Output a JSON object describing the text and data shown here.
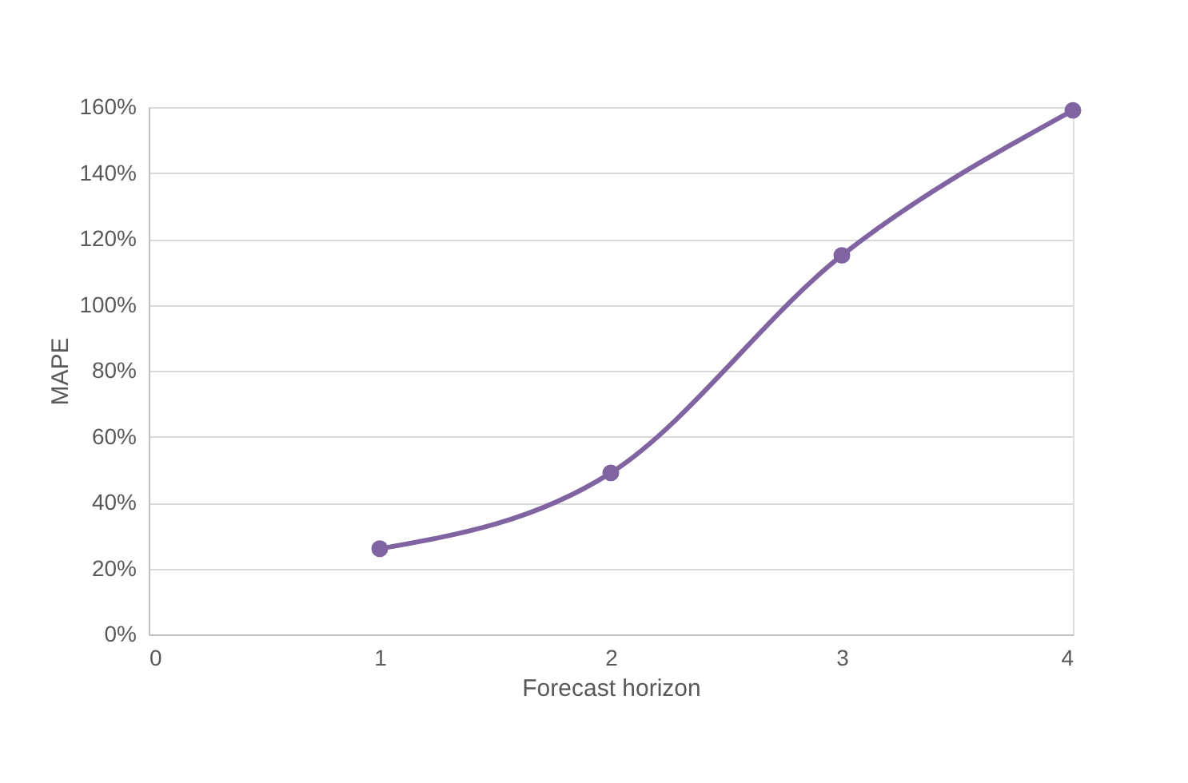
{
  "chart_data": {
    "type": "line",
    "xlabel": "Forecast horizon",
    "ylabel": "MAPE",
    "x": [
      1,
      2,
      3,
      4
    ],
    "series": [
      {
        "color": "#8064a2",
        "values": [
          26,
          49,
          115,
          159
        ]
      }
    ],
    "xlim": [
      0,
      4
    ],
    "xticks": [
      0,
      1,
      2,
      3,
      4
    ],
    "ylim": [
      0,
      160
    ],
    "yticks": [
      {
        "value": 0,
        "label": "0%"
      },
      {
        "value": 20,
        "label": "20%"
      },
      {
        "value": 40,
        "label": "40%"
      },
      {
        "value": 60,
        "label": "60%"
      },
      {
        "value": 80,
        "label": "80%"
      },
      {
        "value": 100,
        "label": "100%"
      },
      {
        "value": 120,
        "label": "120%"
      },
      {
        "value": 140,
        "label": "140%"
      },
      {
        "value": 160,
        "label": "160%"
      }
    ],
    "grid": "y",
    "marker": "circle",
    "line_style": "solid",
    "legend": false
  }
}
